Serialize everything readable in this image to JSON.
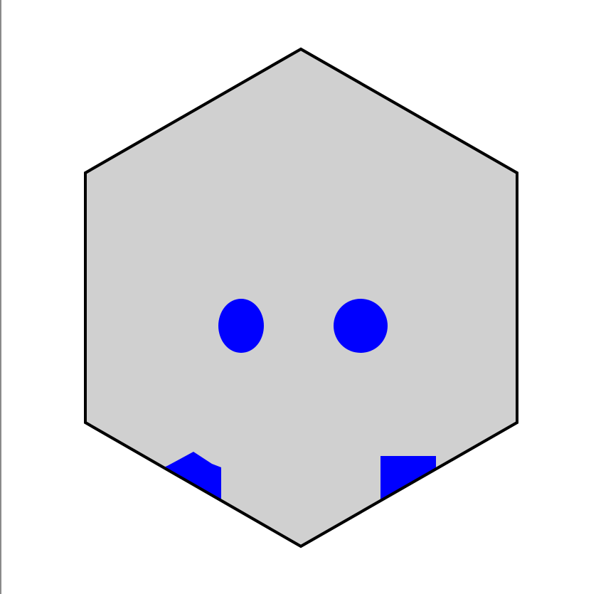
{
  "colors": {
    "page_background": "#ffffff",
    "left_border": "#8a8a8a",
    "hex_fill": "#d0d0d0",
    "hex_stroke": "#000000",
    "piece_fill": "#0000ff"
  },
  "board": {
    "shape": "hexagon",
    "orientation": "pointy-top"
  },
  "pieces": [
    {
      "kind": "oval",
      "color": "blue"
    },
    {
      "kind": "circle",
      "color": "blue"
    },
    {
      "kind": "bumper-left",
      "color": "blue"
    },
    {
      "kind": "bumper-right",
      "color": "blue"
    }
  ]
}
